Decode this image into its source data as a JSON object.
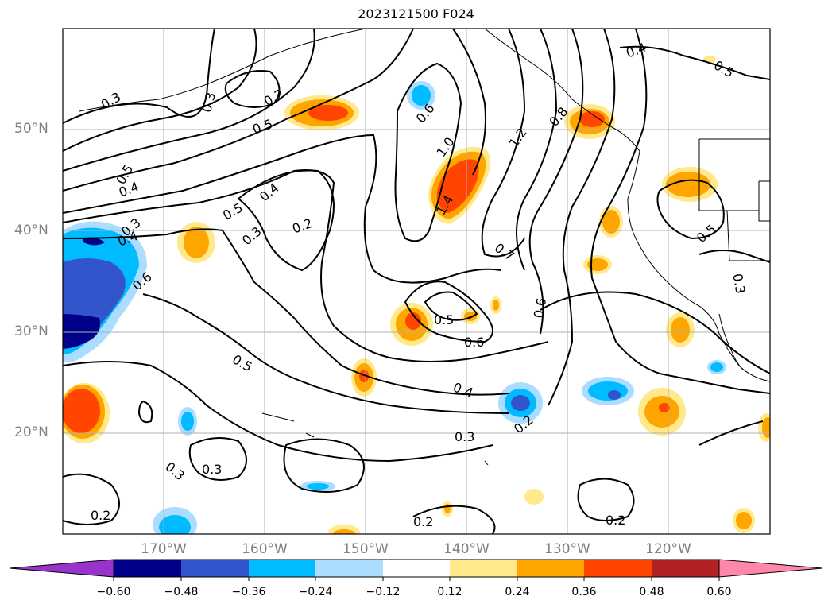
{
  "title": "2023121500 F024",
  "map": {
    "lon_range": [
      -180,
      -110
    ],
    "lat_range": [
      10,
      60
    ],
    "lat_labels": [
      {
        "text": "50°N",
        "lat": 50
      },
      {
        "text": "40°N",
        "lat": 40
      },
      {
        "text": "30°N",
        "lat": 30
      },
      {
        "text": "20°N",
        "lat": 20
      }
    ],
    "lon_labels": [
      {
        "text": "170°W",
        "lon": -170
      },
      {
        "text": "160°W",
        "lon": -160
      },
      {
        "text": "150°W",
        "lon": -150
      },
      {
        "text": "140°W",
        "lon": -140
      },
      {
        "text": "130°W",
        "lon": -130
      },
      {
        "text": "120°W",
        "lon": -120
      }
    ],
    "grid": true,
    "contour_labels": [
      "0.3",
      "0.3",
      "0.2",
      "0.5",
      "0.6",
      "1.0",
      "1.2",
      "0.8",
      "0.4",
      "0.5",
      "0.5",
      "0.4",
      "0.5",
      "0.4",
      "0.3",
      "0.2",
      "0.3",
      "0.4",
      "1.4",
      "0.6",
      "0.7",
      "0.5",
      "0.6",
      "0.6",
      "0.5",
      "0.3",
      "0.4",
      "0.5",
      "0.3",
      "0.2",
      "0.3",
      "0.3",
      "0.2",
      "0.2",
      "0.2"
    ]
  },
  "colorbar": {
    "colors": [
      "#9933cc",
      "#000088",
      "#3355cc",
      "#00bbff",
      "#aaddff",
      "#ffffff",
      "#ffe98a",
      "#ffa500",
      "#ff4500",
      "#b22222",
      "#ff88aa"
    ],
    "ticks": [
      "−0.60",
      "−0.48",
      "−0.36",
      "−0.24",
      "−0.12",
      "0.12",
      "0.24",
      "0.36",
      "0.48",
      "0.60"
    ]
  }
}
